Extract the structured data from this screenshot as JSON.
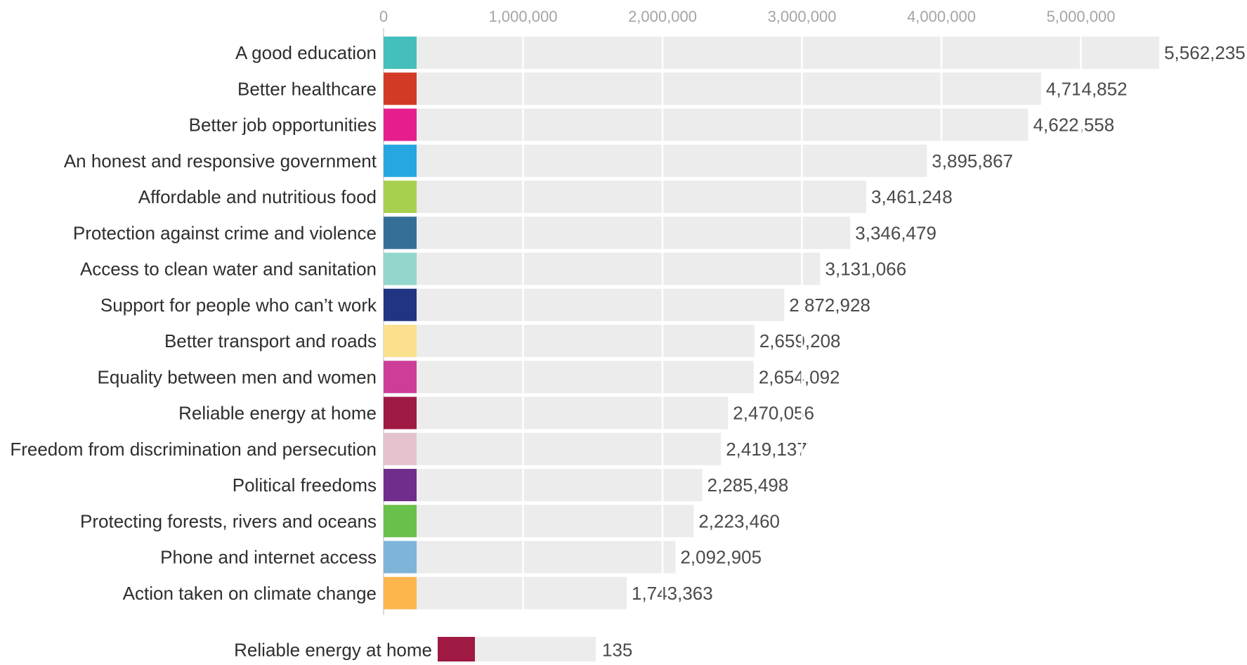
{
  "chart_data": {
    "type": "bar",
    "orientation": "horizontal",
    "title": "",
    "xlabel": "",
    "ylabel": "",
    "xlim": [
      0,
      5600000
    ],
    "ticks": [
      {
        "value": 0,
        "label": "0"
      },
      {
        "value": 1000000,
        "label": "1,000,000"
      },
      {
        "value": 2000000,
        "label": "2,000,000"
      },
      {
        "value": 3000000,
        "label": "3,000,000"
      },
      {
        "value": 4000000,
        "label": "4,000,000"
      },
      {
        "value": 5000000,
        "label": "5,000,000"
      }
    ],
    "grid": true,
    "bars": [
      {
        "category": "A good education",
        "value": 5562235,
        "value_label": "5,562,235",
        "color": "#45bfbc"
      },
      {
        "category": "Better healthcare",
        "value": 4714852,
        "value_label": "4,714,852",
        "color": "#d33a26"
      },
      {
        "category": "Better job opportunities",
        "value": 4622558,
        "value_label": "4,622,558",
        "color": "#e61d8d"
      },
      {
        "category": "An honest and responsive government",
        "value": 3895867,
        "value_label": "3,895,867",
        "color": "#26a7e1"
      },
      {
        "category": "Affordable and nutritious food",
        "value": 3461248,
        "value_label": "3,461,248",
        "color": "#a9cf4f"
      },
      {
        "category": "Protection against crime and violence",
        "value": 3346479,
        "value_label": "3,346,479",
        "color": "#356f97"
      },
      {
        "category": "Access to clean water and sanitation",
        "value": 3131066,
        "value_label": "3,131,066",
        "color": "#94d6cc"
      },
      {
        "category": "Support for people who can’t work",
        "value": 2872928,
        "value_label": "2,872,928",
        "color": "#213481"
      },
      {
        "category": "Better transport and roads",
        "value": 2659208,
        "value_label": "2,659,208",
        "color": "#fbe08e"
      },
      {
        "category": "Equality between men and women",
        "value": 2654092,
        "value_label": "2,654,092",
        "color": "#cc3e98"
      },
      {
        "category": "Reliable energy at home",
        "value": 2470056,
        "value_label": "2,470,056",
        "color": "#9e1a43"
      },
      {
        "category": "Freedom from discrimination and persecution",
        "value": 2419137,
        "value_label": "2,419,137",
        "color": "#e4c3cf"
      },
      {
        "category": "Political freedoms",
        "value": 2285498,
        "value_label": "2,285,498",
        "color": "#702d8c"
      },
      {
        "category": "Protecting forests, rivers and oceans",
        "value": 2223460,
        "value_label": "2,223,460",
        "color": "#69c04a"
      },
      {
        "category": "Phone and internet access",
        "value": 2092905,
        "value_label": "2,092,905",
        "color": "#7fb4d9"
      },
      {
        "category": "Action taken on climate change",
        "value": 1743363,
        "value_label": "1,743,363",
        "color": "#fdb54e"
      }
    ],
    "secondary_bar": {
      "category": "Reliable energy at home",
      "value": 135,
      "value_label": "135",
      "color": "#9e1a43"
    }
  }
}
